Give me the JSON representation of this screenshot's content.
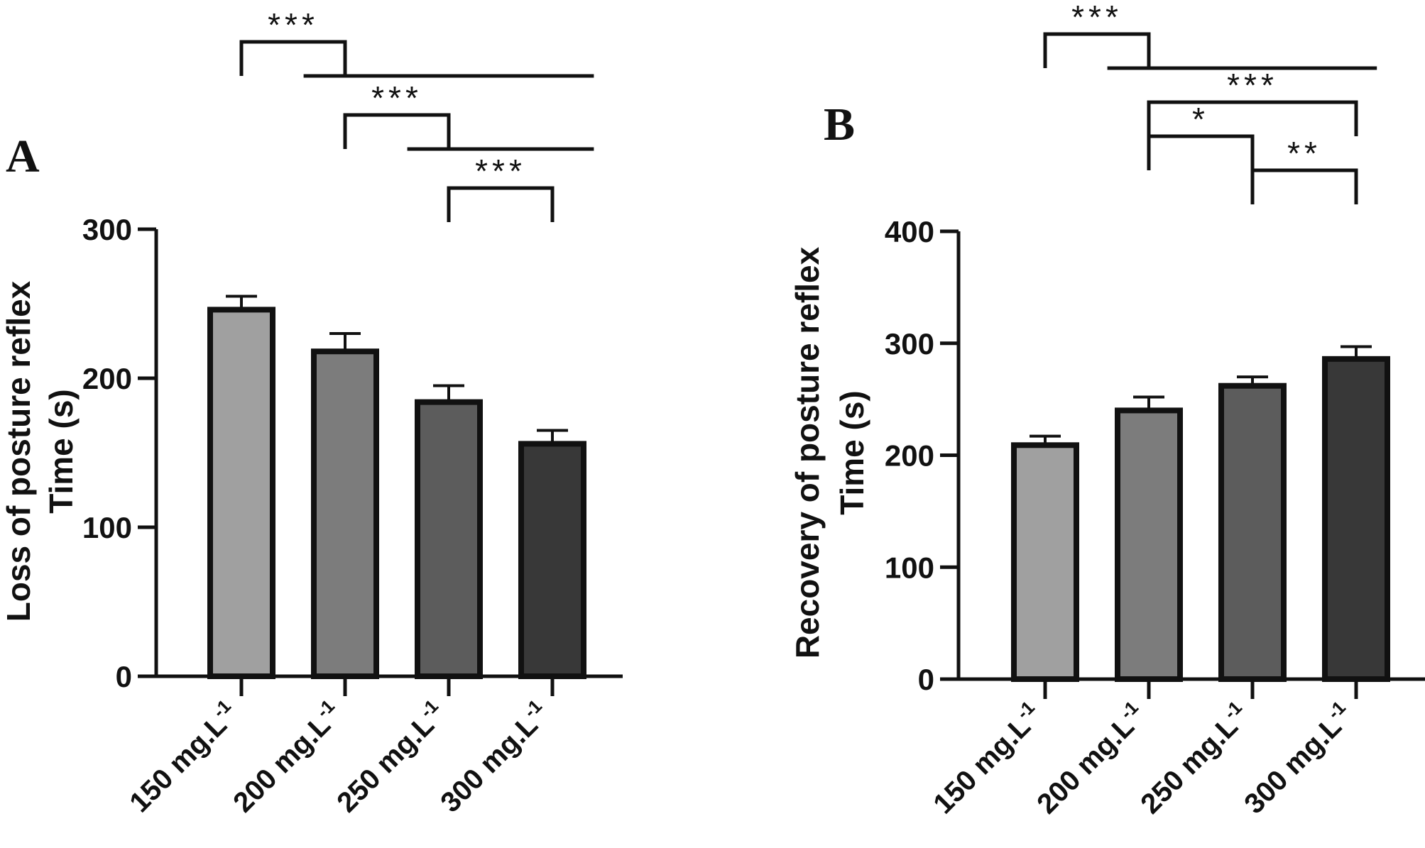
{
  "chart_data": [
    {
      "type": "bar",
      "panel_label": "A",
      "categories": [
        "150 mg.L",
        "200 mg.L",
        "250 mg.L",
        "300 mg.L"
      ],
      "category_superscript": "-1",
      "values": [
        246,
        218,
        184,
        156
      ],
      "errors": [
        9,
        12,
        11,
        9
      ],
      "bar_colors": [
        "#a0a0a0",
        "#7c7c7c",
        "#5c5c5c",
        "#383838"
      ],
      "ylabel_lines": [
        "Loss of posture reflex",
        "Time (s)"
      ],
      "xlabel": "",
      "ylim": [
        0,
        300
      ],
      "yticks": [
        0,
        100,
        200,
        300
      ],
      "significance": [
        {
          "from": 0,
          "to": 1,
          "label": "***",
          "level": 5,
          "right_ext": 3.4
        },
        {
          "from": 1,
          "to": 2,
          "label": "***",
          "level": 3,
          "right_ext": 3.4
        },
        {
          "from": 2,
          "to": 3,
          "label": "***",
          "level": 1
        }
      ]
    },
    {
      "type": "bar",
      "panel_label": "B",
      "categories": [
        "150 mg.L",
        "200 mg.L",
        "250 mg.L",
        "300 mg.L"
      ],
      "category_superscript": "-1",
      "values": [
        209,
        240,
        262,
        286
      ],
      "errors": [
        8,
        12,
        8,
        11
      ],
      "bar_colors": [
        "#a0a0a0",
        "#7c7c7c",
        "#5c5c5c",
        "#383838"
      ],
      "ylabel_lines": [
        "Recovery of posture reflex",
        "Time (s)"
      ],
      "xlabel": "",
      "ylim": [
        0,
        400
      ],
      "yticks": [
        0,
        100,
        200,
        300,
        400
      ],
      "significance": [
        {
          "from": 0,
          "to": 1,
          "label": "***",
          "level": 5,
          "right_ext": 3.2
        },
        {
          "from": 1,
          "to": 3,
          "label": "***",
          "level": 3
        },
        {
          "from": 1,
          "to": 2,
          "label": "*",
          "level": 2
        },
        {
          "from": 2,
          "to": 3,
          "label": "**",
          "level": 1
        }
      ]
    }
  ]
}
